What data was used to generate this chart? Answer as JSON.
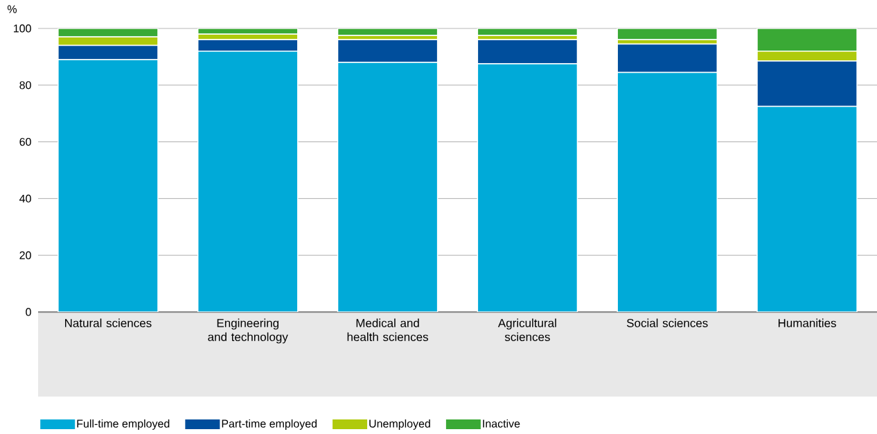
{
  "chart_data": {
    "type": "bar",
    "stacked": true,
    "ylabel": "%",
    "categories": [
      "Natural sciences",
      "Engineering and technology",
      "Medical and health sciences",
      "Agricultural sciences",
      "Social sciences",
      "Humanities"
    ],
    "series": [
      {
        "name": "Full-time employed",
        "color": "#00aad8",
        "values": [
          89,
          92,
          88,
          87.5,
          84.5,
          72.5
        ]
      },
      {
        "name": "Part-time employed",
        "color": "#004e9c",
        "values": [
          5,
          4,
          8,
          8.5,
          10,
          16
        ]
      },
      {
        "name": "Unemployed",
        "color": "#afca0b",
        "values": [
          3,
          2,
          1.5,
          1.5,
          1.5,
          3.5
        ]
      },
      {
        "name": "Inactive",
        "color": "#3aa935",
        "values": [
          3,
          2,
          2.5,
          2.5,
          4,
          8
        ]
      }
    ],
    "ylim": [
      0,
      100
    ],
    "yticks": [
      0,
      20,
      40,
      60,
      80,
      100
    ],
    "grid": "y",
    "legend": "bottom"
  }
}
